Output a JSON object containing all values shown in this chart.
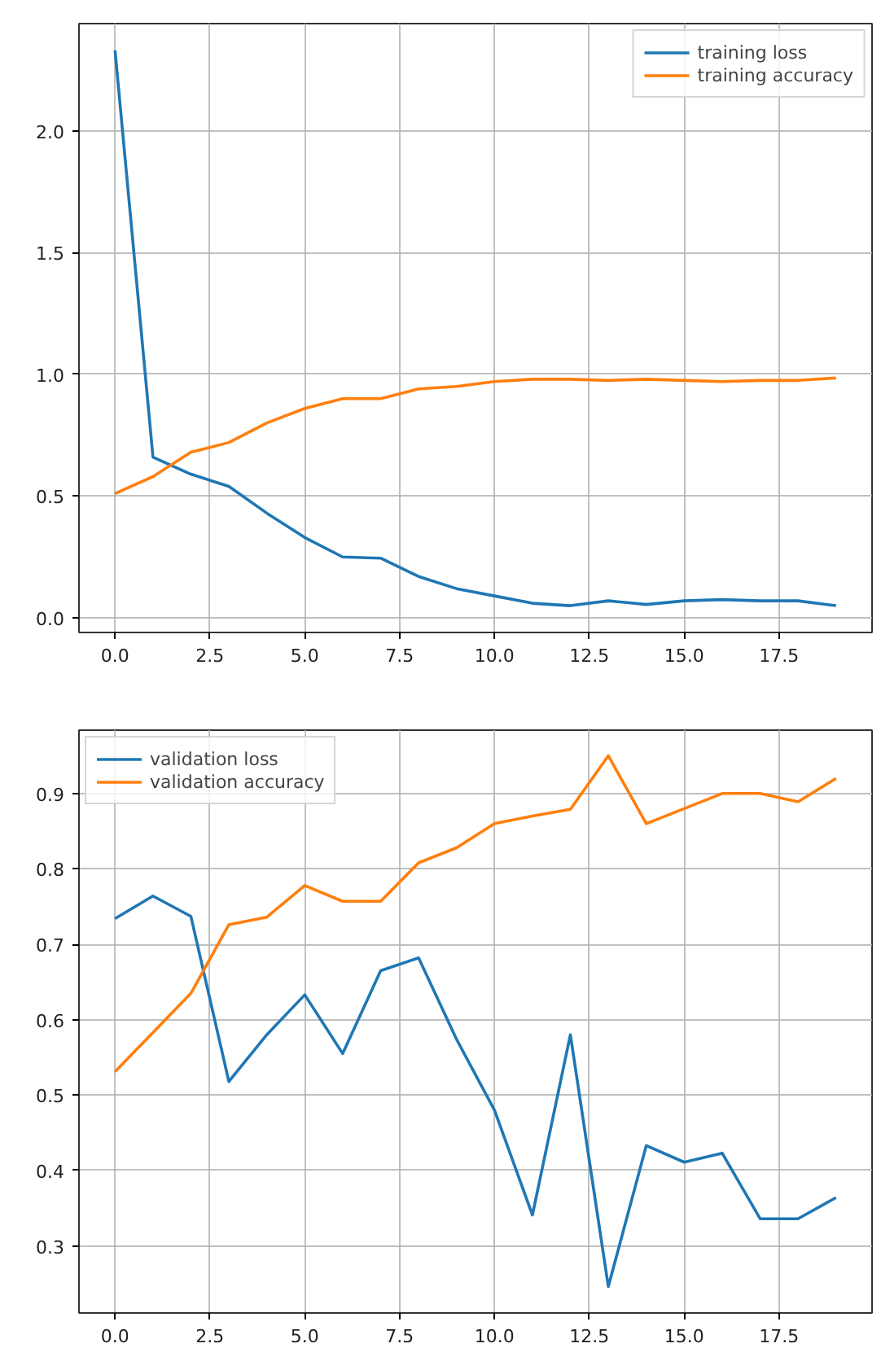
{
  "chart_data": [
    {
      "type": "line",
      "x": [
        0,
        1,
        2,
        3,
        4,
        5,
        6,
        7,
        8,
        9,
        10,
        11,
        12,
        13,
        14,
        15,
        16,
        17,
        18,
        19
      ],
      "xlim": [
        -0.95,
        19.95
      ],
      "xticks": [
        {
          "value": 0,
          "label": "0.0"
        },
        {
          "value": 2.5,
          "label": "2.5"
        },
        {
          "value": 5,
          "label": "5.0"
        },
        {
          "value": 7.5,
          "label": "7.5"
        },
        {
          "value": 10,
          "label": "10.0"
        },
        {
          "value": 12.5,
          "label": "12.5"
        },
        {
          "value": 15,
          "label": "15.0"
        },
        {
          "value": 17.5,
          "label": "17.5"
        }
      ],
      "ylim": [
        -0.06,
        2.44
      ],
      "yticks": [
        {
          "value": 0,
          "label": "0.0"
        },
        {
          "value": 0.5,
          "label": "0.5"
        },
        {
          "value": 1,
          "label": "1.0"
        },
        {
          "value": 1.5,
          "label": "1.5"
        },
        {
          "value": 2,
          "label": "2.0"
        }
      ],
      "grid": true,
      "legend": "top right",
      "series": [
        {
          "name": "training loss",
          "color": "#1f77b4",
          "values": [
            2.33,
            0.66,
            0.59,
            0.54,
            0.43,
            0.33,
            0.25,
            0.245,
            0.17,
            0.12,
            0.09,
            0.06,
            0.05,
            0.07,
            0.055,
            0.07,
            0.075,
            0.07,
            0.07,
            0.05
          ]
        },
        {
          "name": "training accuracy",
          "color": "#ff7f0e",
          "values": [
            0.51,
            0.58,
            0.68,
            0.72,
            0.8,
            0.86,
            0.9,
            0.9,
            0.94,
            0.95,
            0.97,
            0.98,
            0.98,
            0.975,
            0.98,
            0.975,
            0.97,
            0.975,
            0.975,
            0.985
          ]
        }
      ]
    },
    {
      "type": "line",
      "x": [
        0,
        1,
        2,
        3,
        4,
        5,
        6,
        7,
        8,
        9,
        10,
        11,
        12,
        13,
        14,
        15,
        16,
        17,
        18,
        19
      ],
      "xlim": [
        -0.95,
        19.95
      ],
      "xticks": [
        {
          "value": 0,
          "label": "0.0"
        },
        {
          "value": 2.5,
          "label": "2.5"
        },
        {
          "value": 5,
          "label": "5.0"
        },
        {
          "value": 7.5,
          "label": "7.5"
        },
        {
          "value": 10,
          "label": "10.0"
        },
        {
          "value": 12.5,
          "label": "12.5"
        },
        {
          "value": 15,
          "label": "15.0"
        },
        {
          "value": 17.5,
          "label": "17.5"
        }
      ],
      "ylim": [
        0.211,
        0.984
      ],
      "yticks": [
        0.3,
        0.4,
        0.5,
        0.6,
        0.7,
        0.8,
        0.9
      ],
      "grid": true,
      "legend": "top left",
      "series": [
        {
          "name": "validation loss",
          "color": "#1f77b4",
          "values": [
            0.734,
            0.764,
            0.737,
            0.518,
            0.58,
            0.633,
            0.555,
            0.665,
            0.682,
            0.574,
            0.48,
            0.341,
            0.58,
            0.246,
            0.433,
            0.411,
            0.423,
            0.336,
            0.336,
            0.364
          ]
        },
        {
          "name": "validation accuracy",
          "color": "#ff7f0e",
          "values": [
            0.531,
            0.583,
            0.635,
            0.726,
            0.736,
            0.778,
            0.757,
            0.757,
            0.808,
            0.828,
            0.86,
            0.87,
            0.879,
            0.95,
            0.86,
            0.88,
            0.9,
            0.9,
            0.889,
            0.92
          ]
        }
      ]
    }
  ]
}
